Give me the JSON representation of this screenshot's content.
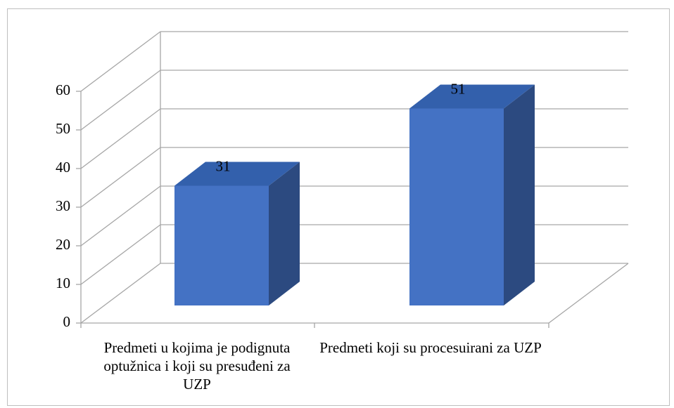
{
  "chart_data": {
    "type": "bar3d",
    "categories": [
      "Predmeti u kojima je podignuta optužnica i koji su presuđeni za UZP",
      "Predmeti koji su procesuirani za UZP"
    ],
    "values": [
      31,
      51
    ],
    "color": "#4472c4",
    "side_color": "#2c4a80",
    "top_color": "#3360ac",
    "ylim": [
      0,
      60
    ],
    "yticks": [
      0,
      10,
      20,
      30,
      40,
      50,
      60
    ],
    "grid": true
  }
}
